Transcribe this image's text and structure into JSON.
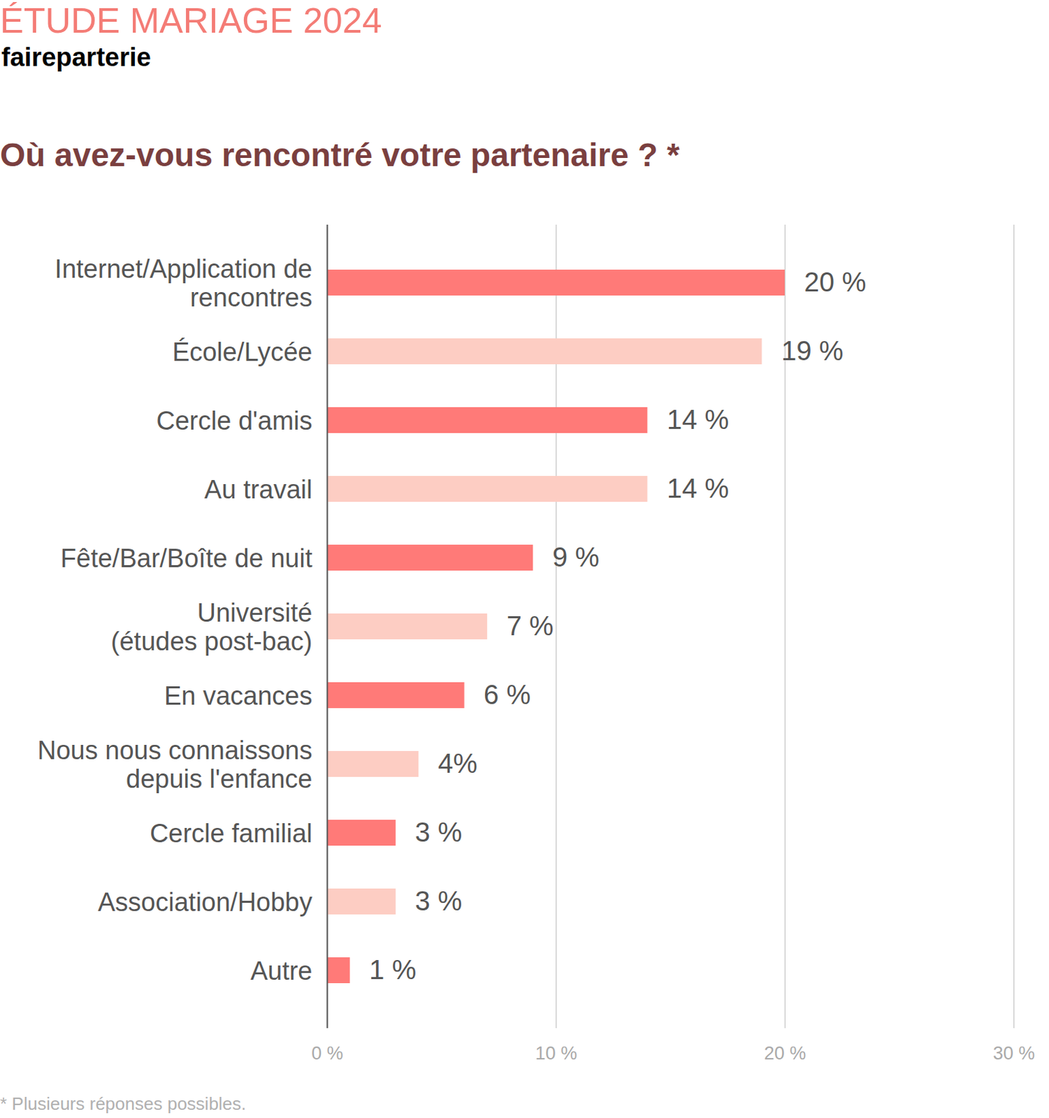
{
  "chart_data": {
    "type": "bar",
    "supertitle": "ÉTUDE MARIAGE 2024",
    "brand": "faireparterie",
    "title": "Où avez-vous rencontré votre partenaire ? *",
    "note": "* Plusieurs réponses possibles.",
    "orientation": "horizontal",
    "categories": [
      "Internet/Application de\nrencontres",
      "École/Lycée",
      "Cercle d'amis",
      "Au travail",
      "Fête/Bar/Boîte de nuit",
      "Université\n(études post-bac)",
      "En vacances",
      "Nous nous connaissons\ndepuis l'enfance",
      "Cercle familial",
      "Association/Hobby",
      "Autre"
    ],
    "values": [
      20,
      19,
      14,
      14,
      9,
      7,
      6,
      4,
      3,
      3,
      1
    ],
    "value_labels": [
      "20 %",
      "19 %",
      "14 %",
      "14 %",
      "9 %",
      "7 %",
      "6 %",
      "4%",
      "3 %",
      "3 %",
      "1 %"
    ],
    "colors": [
      "#ff7a78",
      "#fdcdc3",
      "#ff7a78",
      "#fdcdc3",
      "#ff7a78",
      "#fdcdc3",
      "#ff7a78",
      "#fdcdc3",
      "#ff7a78",
      "#fdcdc3",
      "#ff7a78"
    ],
    "xlim": [
      0,
      30
    ],
    "xticks": [
      {
        "value": 0,
        "label": "0 %"
      },
      {
        "value": 10,
        "label": "10 %"
      },
      {
        "value": 20,
        "label": "20 %"
      },
      {
        "value": 30,
        "label": "30 %"
      }
    ],
    "grid": true,
    "data_labels": true
  }
}
